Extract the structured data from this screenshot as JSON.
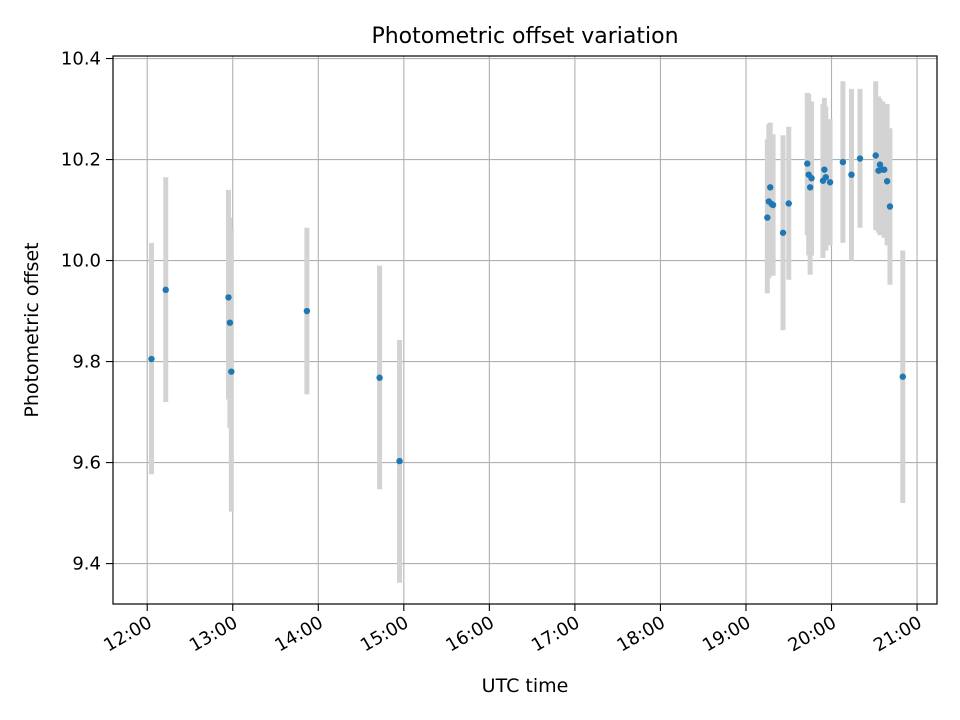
{
  "chart_data": {
    "type": "scatter",
    "title": "Photometric offset variation",
    "xlabel": "UTC time",
    "ylabel": "Photometric offset",
    "xlim": [
      "11:36",
      "21:14"
    ],
    "ylim": [
      9.32,
      10.405
    ],
    "x_ticks": [
      "12:00",
      "13:00",
      "14:00",
      "15:00",
      "16:00",
      "17:00",
      "18:00",
      "19:00",
      "20:00",
      "21:00"
    ],
    "y_ticks": [
      9.4,
      9.6,
      9.8,
      10.0,
      10.2,
      10.4
    ],
    "grid": true,
    "colors": {
      "point": "#1f77b4",
      "errorbar": "#d3d3d3",
      "grid": "#b0b0b0"
    },
    "points": [
      {
        "x": "12:03",
        "y": 9.805,
        "lo": 9.577,
        "hi": 10.035
      },
      {
        "x": "12:13",
        "y": 9.942,
        "lo": 9.72,
        "hi": 10.165
      },
      {
        "x": "12:57",
        "y": 9.927,
        "lo": 9.725,
        "hi": 10.14
      },
      {
        "x": "12:58",
        "y": 9.877,
        "lo": 9.668,
        "hi": 10.085
      },
      {
        "x": "12:59",
        "y": 9.78,
        "lo": 9.503,
        "hi": 10.06
      },
      {
        "x": "13:52",
        "y": 9.9,
        "lo": 9.735,
        "hi": 10.065
      },
      {
        "x": "14:43",
        "y": 9.768,
        "lo": 9.547,
        "hi": 9.99
      },
      {
        "x": "14:57",
        "y": 9.603,
        "lo": 9.362,
        "hi": 9.843
      },
      {
        "x": "19:15",
        "y": 10.085,
        "lo": 9.935,
        "hi": 10.24
      },
      {
        "x": "19:16",
        "y": 10.117,
        "lo": 9.965,
        "hi": 10.27
      },
      {
        "x": "19:17",
        "y": 10.145,
        "lo": 9.985,
        "hi": 10.273
      },
      {
        "x": "19:18",
        "y": 10.112,
        "lo": 9.975,
        "hi": 10.245
      },
      {
        "x": "19:19",
        "y": 10.11,
        "lo": 9.97,
        "hi": 10.25
      },
      {
        "x": "19:26",
        "y": 10.055,
        "lo": 9.862,
        "hi": 10.248
      },
      {
        "x": "19:30",
        "y": 10.113,
        "lo": 9.962,
        "hi": 10.265
      },
      {
        "x": "19:43",
        "y": 10.192,
        "lo": 10.05,
        "hi": 10.332
      },
      {
        "x": "19:44",
        "y": 10.17,
        "lo": 10.01,
        "hi": 10.33
      },
      {
        "x": "19:45",
        "y": 10.145,
        "lo": 9.972,
        "hi": 10.315
      },
      {
        "x": "19:46",
        "y": 10.163,
        "lo": 10.01,
        "hi": 10.315
      },
      {
        "x": "19:54",
        "y": 10.158,
        "lo": 10.005,
        "hi": 10.31
      },
      {
        "x": "19:55",
        "y": 10.18,
        "lo": 10.032,
        "hi": 10.322
      },
      {
        "x": "19:56",
        "y": 10.165,
        "lo": 10.02,
        "hi": 10.305
      },
      {
        "x": "19:59",
        "y": 10.155,
        "lo": 10.03,
        "hi": 10.28
      },
      {
        "x": "20:08",
        "y": 10.195,
        "lo": 10.035,
        "hi": 10.355
      },
      {
        "x": "20:14",
        "y": 10.17,
        "lo": 10.0,
        "hi": 10.34
      },
      {
        "x": "20:20",
        "y": 10.202,
        "lo": 10.065,
        "hi": 10.34
      },
      {
        "x": "20:31",
        "y": 10.208,
        "lo": 10.06,
        "hi": 10.355
      },
      {
        "x": "20:33",
        "y": 10.178,
        "lo": 10.055,
        "hi": 10.325
      },
      {
        "x": "20:34",
        "y": 10.19,
        "lo": 10.05,
        "hi": 10.32
      },
      {
        "x": "20:36",
        "y": 10.18,
        "lo": 10.05,
        "hi": 10.315
      },
      {
        "x": "20:37",
        "y": 10.18,
        "lo": 10.045,
        "hi": 10.31
      },
      {
        "x": "20:39",
        "y": 10.157,
        "lo": 10.03,
        "hi": 10.31
      },
      {
        "x": "20:41",
        "y": 10.107,
        "lo": 9.952,
        "hi": 10.262
      },
      {
        "x": "20:50",
        "y": 9.77,
        "lo": 9.52,
        "hi": 10.02
      }
    ]
  }
}
